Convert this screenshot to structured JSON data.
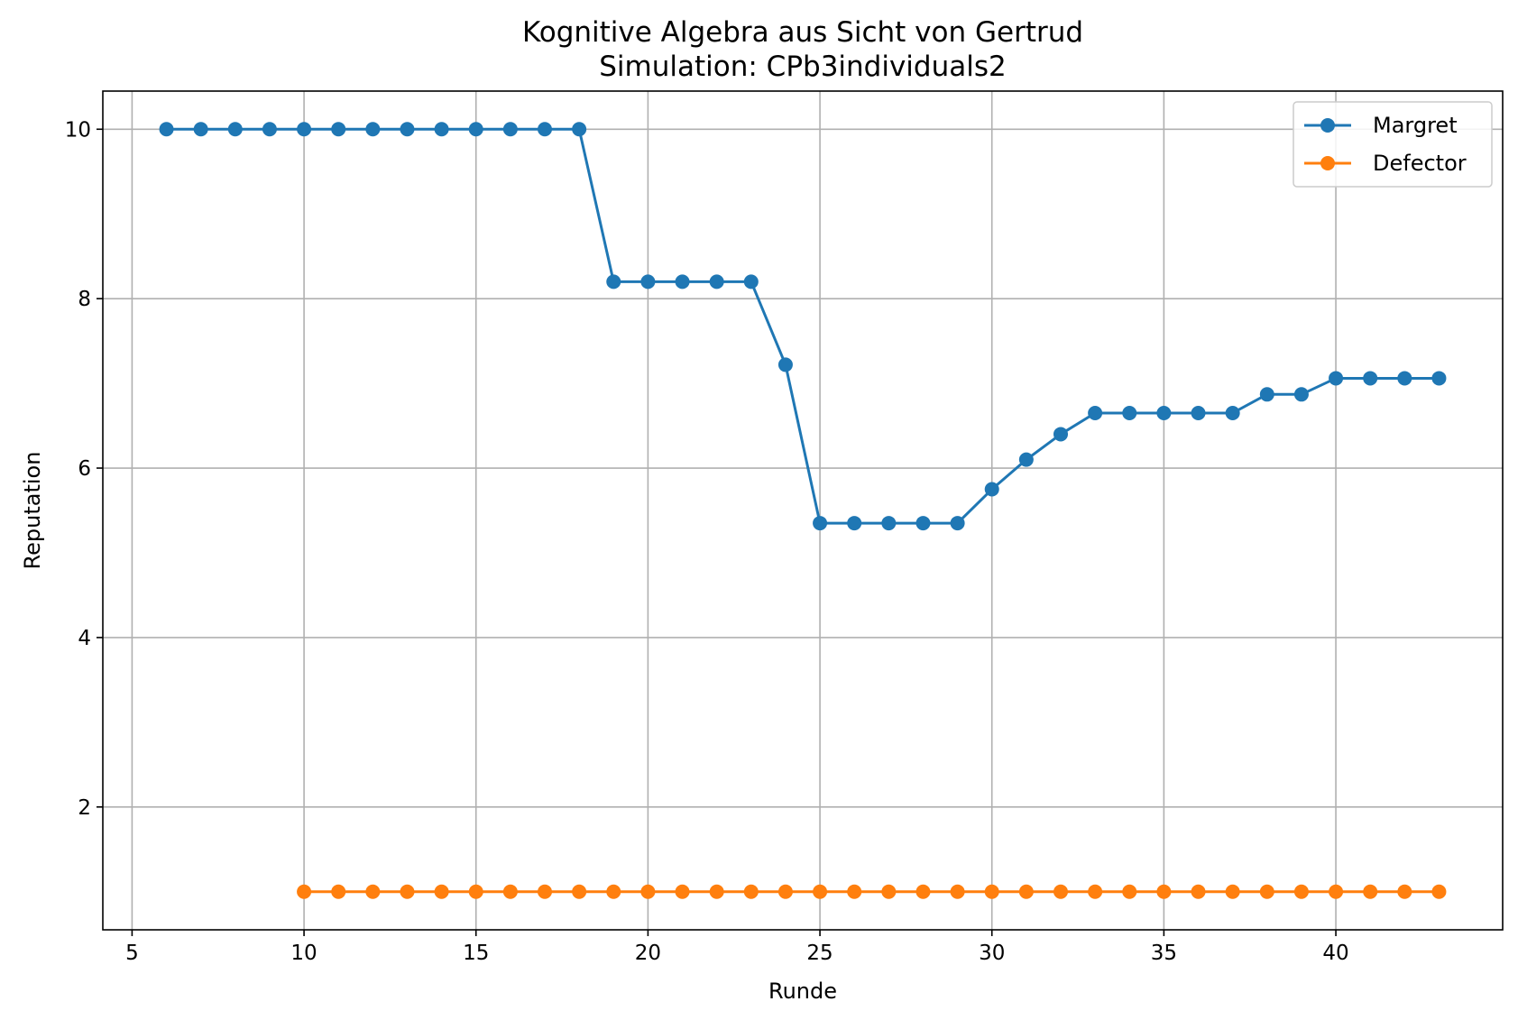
{
  "chart_data": {
    "type": "line",
    "title": "Kognitive Algebra aus Sicht von Gertrud",
    "subtitle": "Simulation: CPb3individuals2",
    "xlabel": "Runde",
    "ylabel": "Reputation",
    "xlim": [
      4.15,
      44.85
    ],
    "ylim": [
      0.55,
      10.45
    ],
    "xticks": [
      5,
      10,
      15,
      20,
      25,
      30,
      35,
      40
    ],
    "yticks": [
      2,
      4,
      6,
      8,
      10
    ],
    "grid": true,
    "legend_position": "top-right",
    "series": [
      {
        "name": "Margret",
        "color": "#1f77b4",
        "x": [
          6,
          7,
          8,
          9,
          10,
          11,
          12,
          13,
          14,
          15,
          16,
          17,
          18,
          19,
          20,
          21,
          22,
          23,
          24,
          25,
          26,
          27,
          28,
          29,
          30,
          31,
          32,
          33,
          34,
          35,
          36,
          37,
          38,
          39,
          40,
          41,
          42,
          43
        ],
        "y": [
          10,
          10,
          10,
          10,
          10,
          10,
          10,
          10,
          10,
          10,
          10,
          10,
          10,
          8.2,
          8.2,
          8.2,
          8.2,
          8.2,
          7.22,
          5.35,
          5.35,
          5.35,
          5.35,
          5.35,
          5.75,
          6.1,
          6.4,
          6.65,
          6.65,
          6.65,
          6.65,
          6.65,
          6.87,
          6.87,
          7.06,
          7.06,
          7.06,
          7.06
        ]
      },
      {
        "name": "Defector",
        "color": "#ff7f0e",
        "x": [
          10,
          11,
          12,
          13,
          14,
          15,
          16,
          17,
          18,
          19,
          20,
          21,
          22,
          23,
          24,
          25,
          26,
          27,
          28,
          29,
          30,
          31,
          32,
          33,
          34,
          35,
          36,
          37,
          38,
          39,
          40,
          41,
          42,
          43
        ],
        "y": [
          1,
          1,
          1,
          1,
          1,
          1,
          1,
          1,
          1,
          1,
          1,
          1,
          1,
          1,
          1,
          1,
          1,
          1,
          1,
          1,
          1,
          1,
          1,
          1,
          1,
          1,
          1,
          1,
          1,
          1,
          1,
          1,
          1,
          1
        ]
      }
    ]
  }
}
